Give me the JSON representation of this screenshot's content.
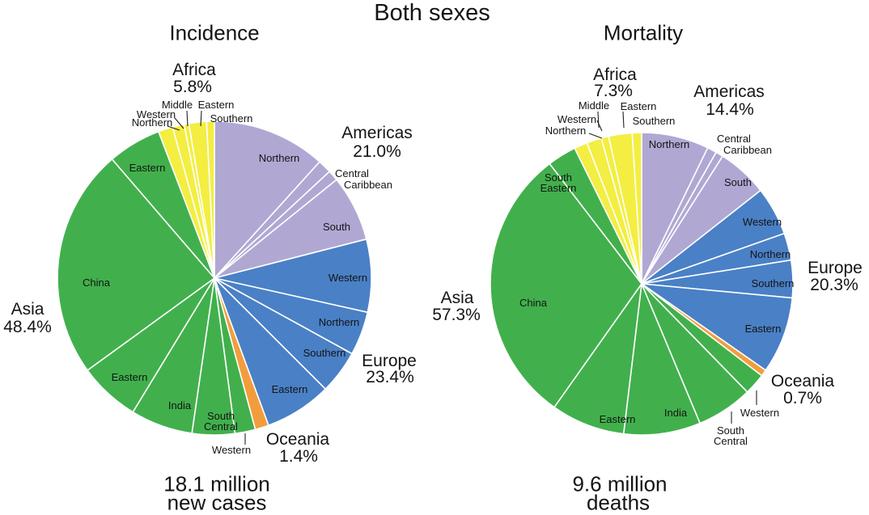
{
  "title": "Both sexes",
  "colors": {
    "asia": "#41b04c",
    "europe": "#4a80c6",
    "americas": "#b0a8d3",
    "africa": "#f3ee41",
    "oceania": "#f29d3d"
  },
  "chart_data": [
    {
      "type": "pie",
      "title": "Incidence",
      "caption_lines": [
        "18.1 million",
        "new cases"
      ],
      "total": "18.1 million new cases",
      "direction": "clockwise",
      "start_angle_deg": 0,
      "units": "percent of total",
      "regions": [
        {
          "name": "Asia",
          "percent_label": "48.4%",
          "percent": 48.4
        },
        {
          "name": "Europe",
          "percent_label": "23.4%",
          "percent": 23.4
        },
        {
          "name": "Americas",
          "percent_label": "21.0%",
          "percent": 21.0
        },
        {
          "name": "Africa",
          "percent_label": "5.8%",
          "percent": 5.8
        },
        {
          "name": "Oceania",
          "percent_label": "1.4%",
          "percent": 1.4
        }
      ],
      "slices": [
        {
          "region": "americas",
          "label": "Northern",
          "value": 11.7
        },
        {
          "region": "americas",
          "label": "Central",
          "value": 1.4
        },
        {
          "region": "americas",
          "label": "Caribbean",
          "value": 1.1
        },
        {
          "region": "americas",
          "label": "South",
          "value": 6.8
        },
        {
          "region": "europe",
          "label": "Western",
          "value": 7.5
        },
        {
          "region": "europe",
          "label": "Northern",
          "value": 4.5
        },
        {
          "region": "europe",
          "label": "Southern",
          "value": 4.5
        },
        {
          "region": "europe",
          "label": "Eastern",
          "value": 6.9
        },
        {
          "region": "oceania",
          "label": "",
          "value": 1.4
        },
        {
          "region": "asia",
          "label": "Western",
          "value": 2.1
        },
        {
          "region": "asia",
          "label": "South Central",
          "value": 4.4
        },
        {
          "region": "asia",
          "label": "India",
          "value": 6.4
        },
        {
          "region": "asia",
          "label": "Eastern",
          "value": 6.3
        },
        {
          "region": "asia",
          "label": "China",
          "value": 23.7
        },
        {
          "region": "asia",
          "label": "Eastern",
          "value": 5.5
        },
        {
          "region": "africa",
          "label": "Northern",
          "value": 1.5
        },
        {
          "region": "africa",
          "label": "Western",
          "value": 1.2
        },
        {
          "region": "africa",
          "label": "Middle",
          "value": 0.5
        },
        {
          "region": "africa",
          "label": "Eastern",
          "value": 1.8
        },
        {
          "region": "africa",
          "label": "Southern",
          "value": 0.8
        }
      ]
    },
    {
      "type": "pie",
      "title": "Mortality",
      "caption_lines": [
        "9.6 million",
        "deaths"
      ],
      "total": "9.6 million deaths",
      "direction": "clockwise",
      "start_angle_deg": 0,
      "units": "percent of total",
      "regions": [
        {
          "name": "Asia",
          "percent_label": "57.3%",
          "percent": 57.3
        },
        {
          "name": "Europe",
          "percent_label": "20.3%",
          "percent": 20.3
        },
        {
          "name": "Americas",
          "percent_label": "14.4%",
          "percent": 14.4
        },
        {
          "name": "Africa",
          "percent_label": "7.3%",
          "percent": 7.3
        },
        {
          "name": "Oceania",
          "percent_label": "0.7%",
          "percent": 0.7
        }
      ],
      "slices": [
        {
          "region": "americas",
          "label": "Northern",
          "value": 7.2
        },
        {
          "region": "americas",
          "label": "Central",
          "value": 1.0
        },
        {
          "region": "americas",
          "label": "Caribbean",
          "value": 0.8
        },
        {
          "region": "americas",
          "label": "South",
          "value": 5.4
        },
        {
          "region": "europe",
          "label": "Western",
          "value": 5.2
        },
        {
          "region": "europe",
          "label": "Northern",
          "value": 2.9
        },
        {
          "region": "europe",
          "label": "Southern",
          "value": 4.0
        },
        {
          "region": "europe",
          "label": "Eastern",
          "value": 8.2
        },
        {
          "region": "oceania",
          "label": "",
          "value": 0.7
        },
        {
          "region": "asia",
          "label": "Western",
          "value": 2.3
        },
        {
          "region": "asia",
          "label": "South Central",
          "value": 6.0
        },
        {
          "region": "asia",
          "label": "India",
          "value": 8.2
        },
        {
          "region": "asia",
          "label": "Eastern",
          "value": 7.9
        },
        {
          "region": "asia",
          "label": "China",
          "value": 29.8
        },
        {
          "region": "asia",
          "label": "South Eastern",
          "value": 3.1
        },
        {
          "region": "africa",
          "label": "Northern",
          "value": 1.4
        },
        {
          "region": "africa",
          "label": "Western",
          "value": 1.6
        },
        {
          "region": "africa",
          "label": "Middle",
          "value": 0.8
        },
        {
          "region": "africa",
          "label": "Eastern",
          "value": 2.5
        },
        {
          "region": "africa",
          "label": "Southern",
          "value": 1.0
        }
      ]
    }
  ]
}
